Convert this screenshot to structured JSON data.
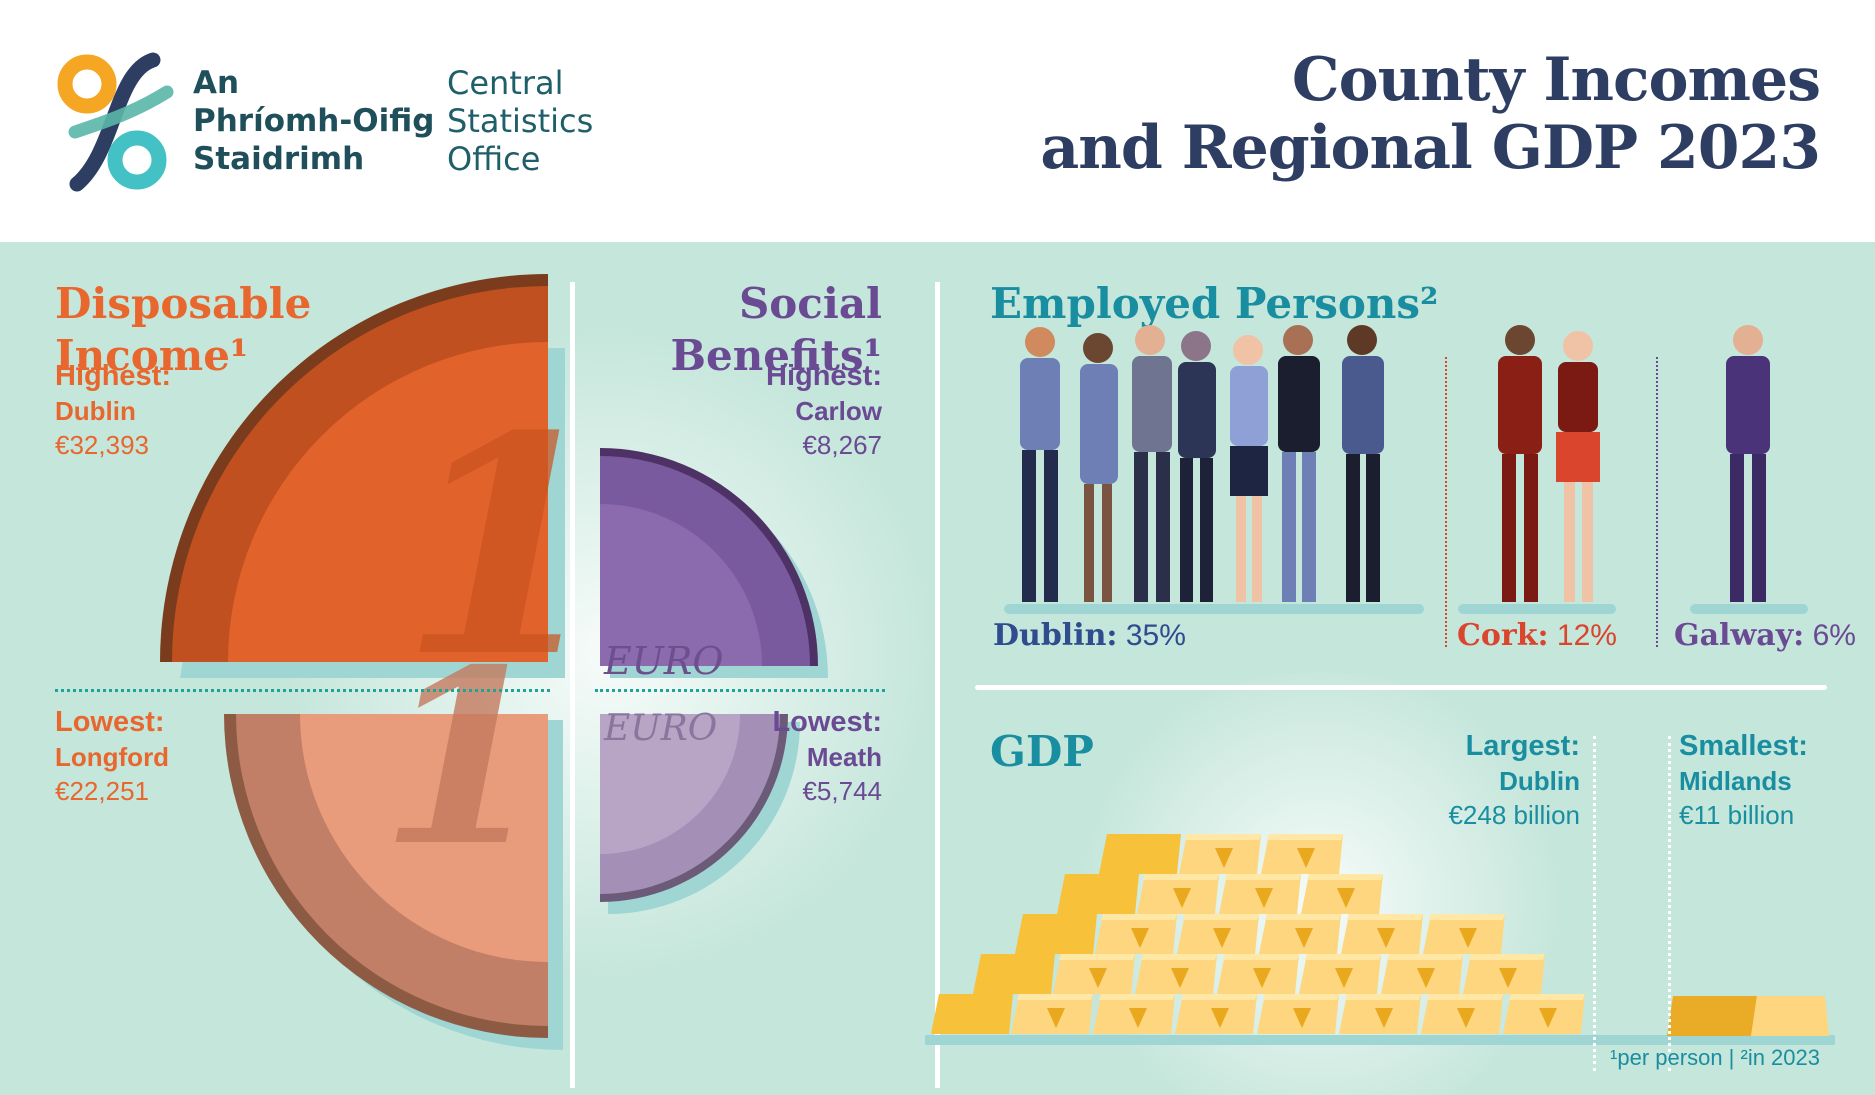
{
  "header": {
    "logo_irish_lines": [
      "An",
      "Phríomh-Oifig",
      "Staidrimh"
    ],
    "logo_english_lines": [
      "Central",
      "Statistics",
      "Office"
    ],
    "title_lines": [
      "County Incomes",
      "and Regional GDP 2023"
    ]
  },
  "disposable_income": {
    "heading_lines": [
      "Disposable",
      "Income¹"
    ],
    "highest": {
      "label": "Highest:",
      "county": "Dublin",
      "value": "€32,393"
    },
    "lowest": {
      "label": "Lowest:",
      "county": "Longford",
      "value": "€22,251"
    },
    "coin_numeral": "1"
  },
  "social_benefits": {
    "heading_lines": [
      "Social",
      "Benefits¹"
    ],
    "highest": {
      "label": "Highest:",
      "county": "Carlow",
      "value": "€8,267"
    },
    "lowest": {
      "label": "Lowest:",
      "county": "Meath",
      "value": "€5,744"
    },
    "coin_text": "EURO"
  },
  "employed_persons": {
    "heading": "Employed Persons²",
    "dublin": {
      "label": "Dublin:",
      "value": "35%"
    },
    "cork": {
      "label": "Cork:",
      "value": "12%"
    },
    "galway": {
      "label": "Galway:",
      "value": "6%"
    }
  },
  "gdp": {
    "heading": "GDP",
    "largest": {
      "label": "Largest:",
      "region": "Dublin",
      "value": "€248 billion"
    },
    "smallest": {
      "label": "Smallest:",
      "region": "Midlands",
      "value": "€11 billion"
    }
  },
  "footnote": "¹per person  |  ²in 2023",
  "colors": {
    "navy": "#2e3e63",
    "orange": "#e8672e",
    "purple": "#6b4a94",
    "teal": "#1a8ea1",
    "gold": "#f7c13a",
    "mint_background": "#c5e6db"
  }
}
